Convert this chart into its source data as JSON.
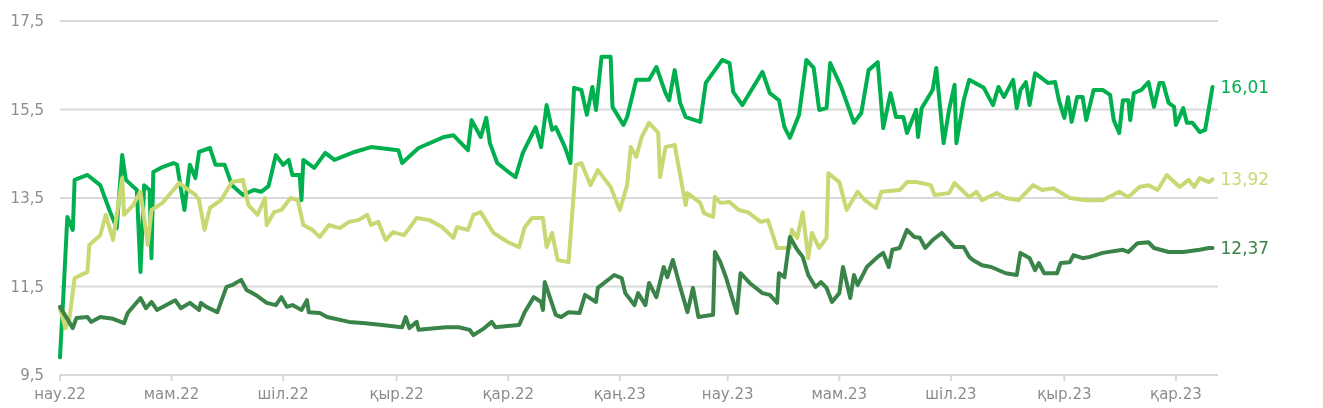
{
  "chart_data": {
    "type": "line",
    "xlim": [
      "2022-03-01",
      "2023-11-24"
    ],
    "ylim": [
      9.5,
      17.5
    ],
    "yticks": [
      {
        "value": 9.5,
        "label": "9,5"
      },
      {
        "value": 11.5,
        "label": "11,5"
      },
      {
        "value": 13.5,
        "label": "13,5"
      },
      {
        "value": 15.5,
        "label": "15,5"
      },
      {
        "value": 17.5,
        "label": "17,5"
      }
    ],
    "xticks": [
      {
        "value": "2022-03-01",
        "label": "нау.22"
      },
      {
        "value": "2022-05-01",
        "label": "мам.22"
      },
      {
        "value": "2022-07-01",
        "label": "шіл.22"
      },
      {
        "value": "2022-09-01",
        "label": "қыр.22"
      },
      {
        "value": "2022-11-01",
        "label": "қар.22"
      },
      {
        "value": "2023-01-01",
        "label": "қаң.23"
      },
      {
        "value": "2023-03-01",
        "label": "нау.23"
      },
      {
        "value": "2023-05-01",
        "label": "мам.23"
      },
      {
        "value": "2023-07-01",
        "label": "шіл.23"
      },
      {
        "value": "2023-09-01",
        "label": "қыр.23"
      },
      {
        "value": "2023-11-01",
        "label": "қар.23"
      }
    ],
    "grid": "y",
    "marker": "none",
    "line_style": "solid",
    "series": [
      {
        "color": "#00b04f",
        "x": [
          "2022-03-01",
          "2022-03-03",
          "2022-03-05",
          "2022-03-08",
          "2022-03-09",
          "2022-03-16",
          "2022-03-23",
          "2022-03-28",
          "2022-04-01",
          "2022-04-04",
          "2022-04-06",
          "2022-04-12",
          "2022-04-14",
          "2022-04-16",
          "2022-04-19",
          "2022-04-20",
          "2022-04-21",
          "2022-04-26",
          "2022-05-02",
          "2022-05-04",
          "2022-05-08",
          "2022-05-11",
          "2022-05-14",
          "2022-05-16",
          "2022-05-22",
          "2022-05-25",
          "2022-05-30",
          "2022-06-03",
          "2022-06-09",
          "2022-06-15",
          "2022-06-19",
          "2022-06-23",
          "2022-06-27",
          "2022-07-01",
          "2022-07-04",
          "2022-07-06",
          "2022-07-10",
          "2022-07-11",
          "2022-07-12",
          "2022-07-18",
          "2022-07-24",
          "2022-07-29",
          "2022-08-09",
          "2022-08-18",
          "2022-09-02",
          "2022-09-04",
          "2022-09-13",
          "2022-09-27",
          "2022-10-02",
          "2022-10-10",
          "2022-10-12",
          "2022-10-17",
          "2022-10-20",
          "2022-10-22",
          "2022-10-26",
          "2022-11-02",
          "2022-11-05",
          "2022-11-09",
          "2022-11-16",
          "2022-11-19",
          "2022-11-22",
          "2022-11-25",
          "2022-11-27",
          "2022-12-02",
          "2022-12-05",
          "2022-12-07",
          "2022-12-11",
          "2022-12-14",
          "2022-12-17",
          "2022-12-19",
          "2022-12-22",
          "2022-12-27",
          "2022-12-28",
          "2023-01-03",
          "2023-01-05",
          "2023-01-10",
          "2023-01-17",
          "2023-01-21",
          "2023-01-26",
          "2023-01-28",
          "2023-01-31",
          "2023-02-03",
          "2023-02-06",
          "2023-02-14",
          "2023-02-17",
          "2023-02-26",
          "2023-03-02",
          "2023-03-04",
          "2023-03-09",
          "2023-03-20",
          "2023-03-24",
          "2023-03-29",
          "2023-04-01",
          "2023-04-04",
          "2023-04-09",
          "2023-04-13",
          "2023-04-17",
          "2023-04-20",
          "2023-04-24",
          "2023-04-26",
          "2023-05-02",
          "2023-05-09",
          "2023-05-13",
          "2023-05-17",
          "2023-05-22",
          "2023-05-25",
          "2023-05-29",
          "2023-06-01",
          "2023-06-05",
          "2023-06-07",
          "2023-06-12",
          "2023-06-13",
          "2023-06-15",
          "2023-06-21",
          "2023-06-23",
          "2023-06-27",
          "2023-06-30",
          "2023-07-03",
          "2023-07-04",
          "2023-07-08",
          "2023-07-11",
          "2023-07-19",
          "2023-07-24",
          "2023-07-27",
          "2023-07-30",
          "2023-08-04",
          "2023-08-06",
          "2023-08-08",
          "2023-08-11",
          "2023-08-13",
          "2023-08-16",
          "2023-08-23",
          "2023-08-27",
          "2023-08-29",
          "2023-09-01",
          "2023-09-03",
          "2023-09-05",
          "2023-09-08",
          "2023-09-11",
          "2023-09-13",
          "2023-09-17",
          "2023-09-22",
          "2023-09-26",
          "2023-09-28",
          "2023-10-01",
          "2023-10-03",
          "2023-10-06",
          "2023-10-07",
          "2023-10-09",
          "2023-10-13",
          "2023-10-17",
          "2023-10-20",
          "2023-10-23",
          "2023-10-25",
          "2023-10-28",
          "2023-10-31",
          "2023-11-01",
          "2023-11-05",
          "2023-11-07",
          "2023-11-10",
          "2023-11-14",
          "2023-11-17",
          "2023-11-21"
        ],
        "values": [
          9.9,
          11.42,
          13.07,
          12.78,
          13.91,
          14.02,
          13.79,
          13.23,
          12.82,
          14.47,
          13.91,
          13.68,
          11.83,
          13.79,
          13.68,
          12.14,
          14.09,
          14.2,
          14.29,
          14.25,
          13.23,
          14.25,
          13.95,
          14.54,
          14.63,
          14.25,
          14.25,
          13.79,
          13.57,
          13.68,
          13.64,
          13.77,
          14.47,
          14.25,
          14.36,
          14.02,
          14.02,
          13.45,
          14.36,
          14.18,
          14.52,
          14.36,
          14.54,
          14.65,
          14.58,
          14.29,
          14.63,
          14.88,
          14.92,
          14.58,
          15.26,
          14.88,
          15.31,
          14.74,
          14.29,
          14.06,
          13.97,
          14.52,
          15.1,
          14.65,
          15.6,
          15.04,
          15.1,
          14.65,
          14.29,
          15.99,
          15.94,
          15.38,
          16.01,
          15.49,
          16.69,
          16.69,
          15.56,
          15.15,
          15.33,
          16.17,
          16.17,
          16.46,
          15.87,
          15.71,
          16.39,
          15.65,
          15.33,
          15.22,
          16.1,
          16.62,
          16.55,
          15.9,
          15.6,
          16.35,
          15.87,
          15.71,
          15.1,
          14.86,
          15.38,
          16.62,
          16.44,
          15.49,
          15.53,
          16.55,
          16.01,
          15.2,
          15.42,
          16.39,
          16.57,
          15.08,
          15.87,
          15.33,
          15.33,
          14.97,
          15.49,
          14.88,
          15.53,
          15.94,
          16.44,
          14.74,
          15.49,
          16.06,
          14.74,
          15.71,
          16.17,
          15.99,
          15.6,
          16.01,
          15.78,
          16.17,
          15.53,
          15.94,
          16.12,
          15.6,
          16.32,
          16.1,
          16.12,
          15.71,
          15.31,
          15.78,
          15.22,
          15.78,
          15.78,
          15.26,
          15.94,
          15.94,
          15.83,
          15.26,
          14.97,
          15.71,
          15.71,
          15.26,
          15.87,
          15.94,
          16.12,
          15.56,
          16.1,
          16.1,
          15.65,
          15.56,
          15.15,
          15.53,
          15.2,
          15.2,
          14.99,
          15.04,
          16.01
        ],
        "value_labels": [
          null,
          null,
          null,
          null,
          null,
          null,
          null,
          null,
          null,
          null,
          null,
          null,
          null,
          null,
          null,
          null,
          null,
          null,
          null,
          null,
          null,
          null,
          null,
          null,
          null,
          null,
          null,
          null,
          null,
          null,
          null,
          null,
          null,
          null,
          null,
          null,
          null,
          null,
          null,
          null,
          null,
          null,
          null,
          null,
          null,
          null,
          null,
          null,
          null,
          null,
          null,
          null,
          null,
          null,
          null,
          null,
          null,
          null,
          null,
          null,
          null,
          null,
          null,
          null,
          null,
          null,
          null,
          null,
          null,
          null,
          null,
          null,
          null,
          null,
          null,
          null,
          null,
          null,
          null,
          null,
          null,
          null,
          null,
          null,
          null,
          null,
          null,
          null,
          null,
          null,
          null,
          null,
          null,
          null,
          null,
          null,
          null,
          null,
          null,
          null,
          null,
          null,
          null,
          null,
          null,
          null,
          null,
          null,
          null,
          null,
          null,
          null,
          null,
          null,
          null,
          null,
          null,
          null,
          null,
          null,
          null,
          null,
          null,
          null,
          null,
          null,
          null,
          null,
          null,
          null,
          null,
          null,
          null,
          null,
          null,
          null,
          null,
          null,
          null,
          null,
          null,
          null,
          null,
          null,
          null,
          null,
          null,
          null,
          null,
          null,
          null,
          null,
          null,
          null,
          null,
          null,
          null,
          null,
          null,
          null,
          null,
          null,
          "16,01"
        ]
      },
      {
        "color": "#c9d872",
        "x": [
          "2022-03-01",
          "2022-03-04",
          "2022-03-06",
          "2022-03-09",
          "2022-03-16",
          "2022-03-17",
          "2022-03-23",
          "2022-03-26",
          "2022-03-30",
          "2022-04-04",
          "2022-04-05",
          "2022-04-10",
          "2022-04-14",
          "2022-04-18",
          "2022-04-20",
          "2022-04-26",
          "2022-05-03",
          "2022-05-05",
          "2022-05-14",
          "2022-05-16",
          "2022-05-19",
          "2022-05-22",
          "2022-05-28",
          "2022-06-03",
          "2022-06-09",
          "2022-06-12",
          "2022-06-17",
          "2022-06-21",
          "2022-06-22",
          "2022-06-26",
          "2022-06-30",
          "2022-07-05",
          "2022-07-09",
          "2022-07-12",
          "2022-07-17",
          "2022-07-21",
          "2022-07-26",
          "2022-08-01",
          "2022-08-06",
          "2022-08-11",
          "2022-08-16",
          "2022-08-18",
          "2022-08-22",
          "2022-08-26",
          "2022-08-30",
          "2022-09-05",
          "2022-09-08",
          "2022-09-12",
          "2022-09-19",
          "2022-09-26",
          "2022-10-02",
          "2022-10-04",
          "2022-10-10",
          "2022-10-13",
          "2022-10-17",
          "2022-10-24",
          "2022-11-01",
          "2022-11-07",
          "2022-11-10",
          "2022-11-14",
          "2022-11-20",
          "2022-11-22",
          "2022-11-25",
          "2022-11-28",
          "2022-12-04",
          "2022-12-08",
          "2022-12-11",
          "2022-12-16",
          "2022-12-20",
          "2022-12-27",
          "2023-01-01",
          "2023-01-05",
          "2023-01-07",
          "2023-01-10",
          "2023-01-13",
          "2023-01-17",
          "2023-01-22",
          "2023-01-23",
          "2023-01-26",
          "2023-01-31",
          "2023-02-06",
          "2023-02-07",
          "2023-02-14",
          "2023-02-16",
          "2023-02-21",
          "2023-02-22",
          "2023-02-25",
          "2023-03-02",
          "2023-03-07",
          "2023-03-12",
          "2023-03-19",
          "2023-03-23",
          "2023-03-28",
          "2023-04-04",
          "2023-04-05",
          "2023-04-08",
          "2023-04-11",
          "2023-04-14",
          "2023-04-16",
          "2023-04-20",
          "2023-04-24",
          "2023-04-25",
          "2023-05-01",
          "2023-05-05",
          "2023-05-11",
          "2023-05-15",
          "2023-05-21",
          "2023-05-24",
          "2023-06-03",
          "2023-06-07",
          "2023-06-12",
          "2023-06-20",
          "2023-06-22",
          "2023-06-30",
          "2023-07-03",
          "2023-07-11",
          "2023-07-15",
          "2023-07-18",
          "2023-07-26",
          "2023-07-31",
          "2023-08-07",
          "2023-08-15",
          "2023-08-20",
          "2023-08-26",
          "2023-09-04",
          "2023-09-13",
          "2023-09-22",
          "2023-10-01",
          "2023-10-06",
          "2023-10-12",
          "2023-10-17",
          "2023-10-22",
          "2023-10-27",
          "2023-11-03",
          "2023-11-08",
          "2023-11-11",
          "2023-11-14",
          "2023-11-19",
          "2023-11-21"
        ],
        "values": [
          11.0,
          10.56,
          10.74,
          11.69,
          11.83,
          12.44,
          12.66,
          13.12,
          12.55,
          13.95,
          13.12,
          13.34,
          13.64,
          12.44,
          13.23,
          13.39,
          13.73,
          13.84,
          13.57,
          13.45,
          12.78,
          13.28,
          13.45,
          13.86,
          13.91,
          13.34,
          13.12,
          13.5,
          12.89,
          13.18,
          13.23,
          13.5,
          13.45,
          12.89,
          12.78,
          12.62,
          12.89,
          12.82,
          12.96,
          13.0,
          13.12,
          12.89,
          12.96,
          12.55,
          12.73,
          12.66,
          12.82,
          13.05,
          13.0,
          12.84,
          12.6,
          12.84,
          12.78,
          13.12,
          13.18,
          12.71,
          12.5,
          12.39,
          12.84,
          13.05,
          13.05,
          12.39,
          12.71,
          12.1,
          12.05,
          14.25,
          14.29,
          13.79,
          14.13,
          13.75,
          13.23,
          13.79,
          14.65,
          14.43,
          14.88,
          15.2,
          14.97,
          13.97,
          14.65,
          14.7,
          13.34,
          13.61,
          13.39,
          13.16,
          13.07,
          13.52,
          13.39,
          13.41,
          13.23,
          13.18,
          12.96,
          13.0,
          12.37,
          12.37,
          12.78,
          12.6,
          13.18,
          12.14,
          12.71,
          12.37,
          12.6,
          14.06,
          13.86,
          13.23,
          13.64,
          13.45,
          13.27,
          13.64,
          13.68,
          13.86,
          13.86,
          13.79,
          13.57,
          13.61,
          13.84,
          13.52,
          13.64,
          13.45,
          13.61,
          13.5,
          13.45,
          13.79,
          13.68,
          13.72,
          13.5,
          13.45,
          13.45,
          13.64,
          13.52,
          13.75,
          13.79,
          13.68,
          14.02,
          13.75,
          13.91,
          13.75,
          13.95,
          13.86,
          13.92
        ],
        "value_labels": [
          null,
          null,
          null,
          null,
          null,
          null,
          null,
          null,
          null,
          null,
          null,
          null,
          null,
          null,
          null,
          null,
          null,
          null,
          null,
          null,
          null,
          null,
          null,
          null,
          null,
          null,
          null,
          null,
          null,
          null,
          null,
          null,
          null,
          null,
          null,
          null,
          null,
          null,
          null,
          null,
          null,
          null,
          null,
          null,
          null,
          null,
          null,
          null,
          null,
          null,
          null,
          null,
          null,
          null,
          null,
          null,
          null,
          null,
          null,
          null,
          null,
          null,
          null,
          null,
          null,
          null,
          null,
          null,
          null,
          null,
          null,
          null,
          null,
          null,
          null,
          null,
          null,
          null,
          null,
          null,
          null,
          null,
          null,
          null,
          null,
          null,
          null,
          null,
          null,
          null,
          null,
          null,
          null,
          null,
          null,
          null,
          null,
          null,
          null,
          null,
          null,
          null,
          null,
          null,
          null,
          null,
          null,
          null,
          null,
          null,
          null,
          null,
          null,
          null,
          null,
          null,
          null,
          null,
          null,
          null,
          null,
          null,
          null,
          null,
          null,
          null,
          null,
          null,
          null,
          null,
          null,
          null,
          null,
          null,
          null,
          null,
          null,
          null,
          "13,92"
        ]
      },
      {
        "color": "#3a8449",
        "x": [
          "2022-03-01",
          "2022-03-08",
          "2022-03-10",
          "2022-03-16",
          "2022-03-18",
          "2022-03-23",
          "2022-03-30",
          "2022-04-05",
          "2022-04-07",
          "2022-04-14",
          "2022-04-17",
          "2022-04-20",
          "2022-04-23",
          "2022-05-03",
          "2022-05-06",
          "2022-05-11",
          "2022-05-16",
          "2022-05-17",
          "2022-05-20",
          "2022-05-26",
          "2022-05-31",
          "2022-06-03",
          "2022-06-08",
          "2022-06-11",
          "2022-06-16",
          "2022-06-22",
          "2022-06-27",
          "2022-06-30",
          "2022-07-03",
          "2022-07-06",
          "2022-07-11",
          "2022-07-14",
          "2022-07-15",
          "2022-07-21",
          "2022-07-25",
          "2022-08-06",
          "2022-08-15",
          "2022-08-24",
          "2022-09-04",
          "2022-09-06",
          "2022-09-08",
          "2022-09-12",
          "2022-09-13",
          "2022-09-28",
          "2022-10-05",
          "2022-10-11",
          "2022-10-13",
          "2022-10-19",
          "2022-10-23",
          "2022-10-25",
          "2022-11-07",
          "2022-11-10",
          "2022-11-15",
          "2022-11-19",
          "2022-11-20",
          "2022-11-21",
          "2022-11-23",
          "2022-11-27",
          "2022-11-30",
          "2022-12-04",
          "2022-12-10",
          "2022-12-13",
          "2022-12-19",
          "2022-12-20",
          "2022-12-29",
          "2023-01-02",
          "2023-01-04",
          "2023-01-09",
          "2023-01-11",
          "2023-01-15",
          "2023-01-17",
          "2023-01-21",
          "2023-01-25",
          "2023-01-27",
          "2023-01-30",
          "2023-02-03",
          "2023-02-07",
          "2023-02-10",
          "2023-02-13",
          "2023-02-21",
          "2023-02-22",
          "2023-02-25",
          "2023-02-28",
          "2023-03-06",
          "2023-03-08",
          "2023-03-13",
          "2023-03-20",
          "2023-03-24",
          "2023-03-28",
          "2023-03-29",
          "2023-04-01",
          "2023-04-04",
          "2023-04-08",
          "2023-04-11",
          "2023-04-14",
          "2023-04-18",
          "2023-04-21",
          "2023-04-24",
          "2023-04-27",
          "2023-05-01",
          "2023-05-03",
          "2023-05-07",
          "2023-05-09",
          "2023-05-11",
          "2023-05-16",
          "2023-05-22",
          "2023-05-25",
          "2023-05-28",
          "2023-05-30",
          "2023-06-03",
          "2023-06-07",
          "2023-06-11",
          "2023-06-14",
          "2023-06-17",
          "2023-06-21",
          "2023-06-26",
          "2023-07-03",
          "2023-07-08",
          "2023-07-11",
          "2023-07-13",
          "2023-07-18",
          "2023-07-23",
          "2023-07-31",
          "2023-08-06",
          "2023-08-08",
          "2023-08-13",
          "2023-08-16",
          "2023-08-18",
          "2023-08-21",
          "2023-08-28",
          "2023-08-30",
          "2023-09-04",
          "2023-09-06",
          "2023-09-11",
          "2023-09-15",
          "2023-09-22",
          "2023-10-03",
          "2023-10-06",
          "2023-10-11",
          "2023-10-17",
          "2023-10-20",
          "2023-10-28",
          "2023-11-05",
          "2023-11-14",
          "2023-11-19",
          "2023-11-21"
        ],
        "values": [
          11.04,
          10.56,
          10.79,
          10.81,
          10.7,
          10.81,
          10.77,
          10.67,
          10.9,
          11.24,
          11.01,
          11.15,
          10.97,
          11.19,
          11.01,
          11.13,
          10.97,
          11.13,
          11.04,
          10.92,
          11.49,
          11.53,
          11.65,
          11.42,
          11.31,
          11.13,
          11.08,
          11.26,
          11.04,
          11.08,
          10.97,
          11.19,
          10.92,
          10.9,
          10.81,
          10.7,
          10.67,
          10.63,
          10.58,
          10.81,
          10.56,
          10.7,
          10.52,
          10.58,
          10.58,
          10.52,
          10.4,
          10.56,
          10.7,
          10.58,
          10.63,
          10.92,
          11.26,
          11.15,
          10.97,
          11.6,
          11.35,
          10.86,
          10.81,
          10.92,
          10.9,
          11.31,
          11.15,
          11.47,
          11.76,
          11.69,
          11.35,
          11.08,
          11.35,
          11.08,
          11.58,
          11.26,
          11.94,
          11.71,
          12.1,
          11.49,
          10.92,
          11.47,
          10.81,
          10.86,
          12.28,
          12.05,
          11.71,
          10.9,
          11.8,
          11.58,
          11.35,
          11.31,
          11.13,
          11.8,
          11.71,
          12.62,
          12.33,
          12.17,
          11.76,
          11.49,
          11.6,
          11.47,
          11.15,
          11.35,
          11.94,
          11.24,
          11.76,
          11.53,
          11.94,
          12.17,
          12.26,
          11.94,
          12.33,
          12.37,
          12.78,
          12.62,
          12.6,
          12.37,
          12.55,
          12.71,
          12.39,
          12.39,
          12.17,
          12.1,
          11.98,
          11.94,
          11.8,
          11.76,
          12.26,
          12.14,
          11.87,
          12.03,
          11.8,
          11.8,
          12.03,
          12.05,
          12.21,
          12.14,
          12.17,
          12.26,
          12.33,
          12.28,
          12.48,
          12.5,
          12.37,
          12.28,
          12.28,
          12.33,
          12.37,
          12.37
        ],
        "value_labels": [
          null,
          null,
          null,
          null,
          null,
          null,
          null,
          null,
          null,
          null,
          null,
          null,
          null,
          null,
          null,
          null,
          null,
          null,
          null,
          null,
          null,
          null,
          null,
          null,
          null,
          null,
          null,
          null,
          null,
          null,
          null,
          null,
          null,
          null,
          null,
          null,
          null,
          null,
          null,
          null,
          null,
          null,
          null,
          null,
          null,
          null,
          null,
          null,
          null,
          null,
          null,
          null,
          null,
          null,
          null,
          null,
          null,
          null,
          null,
          null,
          null,
          null,
          null,
          null,
          null,
          null,
          null,
          null,
          null,
          null,
          null,
          null,
          null,
          null,
          null,
          null,
          null,
          null,
          null,
          null,
          null,
          null,
          null,
          null,
          null,
          null,
          null,
          null,
          null,
          null,
          null,
          null,
          null,
          null,
          null,
          null,
          null,
          null,
          null,
          null,
          null,
          null,
          null,
          null,
          null,
          null,
          null,
          null,
          null,
          null,
          null,
          null,
          null,
          null,
          null,
          null,
          null,
          null,
          null,
          null,
          null,
          null,
          null,
          null,
          null,
          null,
          null,
          null,
          null,
          null,
          null,
          null,
          null,
          null,
          null,
          null,
          null,
          null,
          null,
          null,
          null,
          null,
          null,
          null,
          null,
          "12,37"
        ]
      }
    ]
  }
}
